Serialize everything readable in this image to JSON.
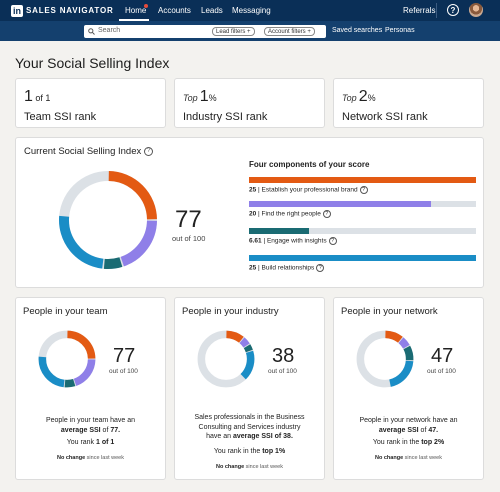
{
  "nav": {
    "brand": "SALES NAVIGATOR",
    "brand_mark": "in",
    "items": [
      {
        "label": "Home",
        "active": true
      },
      {
        "label": "Accounts"
      },
      {
        "label": "Leads"
      },
      {
        "label": "Messaging"
      }
    ],
    "referrals": "Referrals",
    "help": "?"
  },
  "search": {
    "placeholder": "Search",
    "lead_filters": "Lead filters +",
    "account_filters": "Account filters +",
    "saved_searches": "Saved searches",
    "personas": "Personas"
  },
  "page_title": "Your Social Selling Index",
  "ranks": [
    {
      "big": "1",
      "suffix": " of 1",
      "label": "Team SSI rank",
      "prefix": ""
    },
    {
      "big": "1",
      "suffix": "%",
      "label": "Industry SSI rank",
      "prefix": "Top"
    },
    {
      "big": "2",
      "suffix": "%",
      "label": "Network SSI rank",
      "prefix": "Top"
    }
  ],
  "current": {
    "title": "Current Social Selling Index",
    "score": "77",
    "out_of": "out of 100",
    "components_title": "Four components of your score",
    "components": [
      {
        "value": "25",
        "label": "Establish your professional brand",
        "score": 25,
        "max": 25,
        "color": "#e35a13"
      },
      {
        "value": "20",
        "label": "Find the right people",
        "score": 20,
        "max": 25,
        "color": "#8f7fe8"
      },
      {
        "value": "6.61",
        "label": "Engage with insights",
        "score": 6.61,
        "max": 25,
        "color": "#1a6b73"
      },
      {
        "value": "25",
        "label": "Build relationships",
        "score": 25,
        "max": 25,
        "color": "#1a8dc6"
      }
    ]
  },
  "colors": {
    "brand": "#e35a13",
    "find": "#8f7fe8",
    "engage": "#1a6b73",
    "build": "#1a8dc6",
    "track": "#dce1e6",
    "nav": "#0a2f57"
  },
  "groups": [
    {
      "title": "People in your team",
      "score": "77",
      "out_of": "out of 100",
      "segments": [
        25,
        20,
        6.61,
        25
      ],
      "note_1": "People in your team have an",
      "note_2_pre": "average SSI",
      "note_2_mid": " of ",
      "note_2_val": "77.",
      "rank_pre": "You rank ",
      "rank_val": "1 of 1",
      "change": "No change",
      "since": " since last week"
    },
    {
      "title": "People in your industry",
      "score": "38",
      "out_of": "out of 100",
      "segments": [
        11,
        5,
        4,
        18
      ],
      "note_1": "Sales professionals in the Business",
      "note_1b": "Consulting and Services industry",
      "note_2_pre": "have an ",
      "note_2_mid": "average SSI",
      "note_2_val": " of 38.",
      "rank_pre": "You rank in the ",
      "rank_val": "top 1%",
      "change": "No change",
      "since": " since last week"
    },
    {
      "title": "People in your network",
      "score": "47",
      "out_of": "out of 100",
      "segments": [
        11,
        6,
        9,
        21
      ],
      "note_1": "People in your network have an",
      "note_2_pre": "average SSI",
      "note_2_mid": " of ",
      "note_2_val": "47.",
      "rank_pre": "You rank in the ",
      "rank_val": "top 2%",
      "change": "No change",
      "since": " since last week"
    }
  ]
}
